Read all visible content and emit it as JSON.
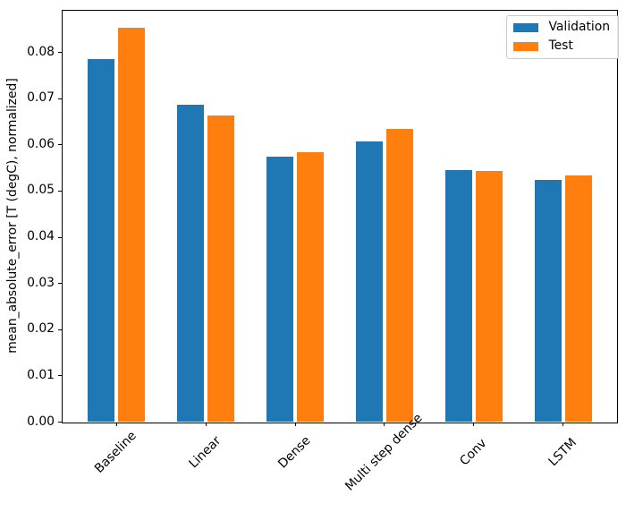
{
  "chart_data": {
    "type": "bar",
    "title": "",
    "xlabel": "",
    "ylabel": "mean_absolute_error [T (degC), normalized]",
    "categories": [
      "Baseline",
      "Linear",
      "Dense",
      "Multi step dense",
      "Conv",
      "LSTM"
    ],
    "series": [
      {
        "name": "Validation",
        "color": "#1f77b4",
        "values": [
          0.0785,
          0.0687,
          0.0575,
          0.0607,
          0.0546,
          0.0524
        ]
      },
      {
        "name": "Test",
        "color": "#ff7f0e",
        "values": [
          0.0854,
          0.0664,
          0.0585,
          0.0634,
          0.0544,
          0.0534
        ]
      }
    ],
    "ylim": [
      0,
      0.0893
    ],
    "yticks": [
      0.0,
      0.01,
      0.02,
      0.03,
      0.04,
      0.05,
      0.06,
      0.07,
      0.08
    ],
    "ytick_labels": [
      "0.00",
      "0.01",
      "0.02",
      "0.03",
      "0.04",
      "0.05",
      "0.06",
      "0.07",
      "0.08"
    ],
    "bar_width": 0.3,
    "bar_offset": 0.17,
    "x_tick_rotation": 45,
    "grid": false,
    "legend": {
      "position": "upper right",
      "entries": [
        "Validation",
        "Test"
      ]
    }
  }
}
